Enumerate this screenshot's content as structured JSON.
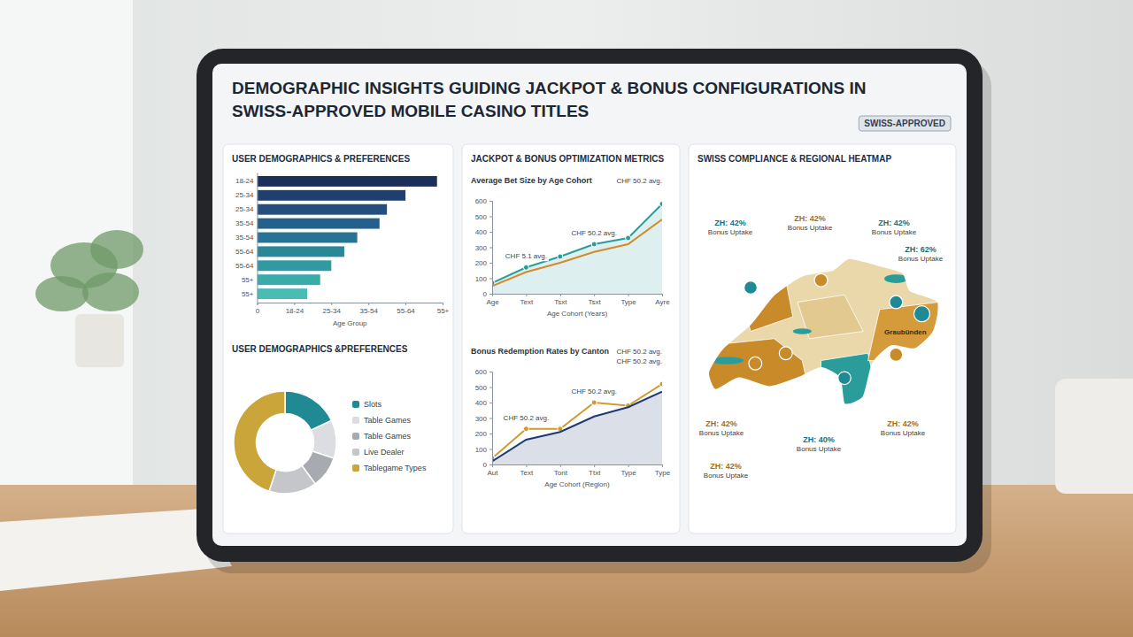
{
  "header": {
    "title": "DEMOGRAPHIC INSIGHTS GUIDING JACKPOT & BONUS CONFIGURATIONS IN SWISS-APPROVED MOBILE CASINO TITLES",
    "badge": "SWISS-APPROVED",
    "panel_title": "JACKPOT & BONUS OPTIMIZATION METRICS"
  },
  "chart_data": [
    {
      "type": "bar",
      "orientation": "horizontal",
      "title": "USER DEMOGRAPHICS & PREFERENCES",
      "categories": [
        "18-24",
        "25-34",
        "25-34",
        "35-54",
        "35-54",
        "55-64",
        "55-64",
        "55+",
        "55+"
      ],
      "values": [
        97,
        80,
        70,
        66,
        54,
        47,
        40,
        34,
        27
      ],
      "colors": [
        "#1b2f5a",
        "#1f3f6e",
        "#234e7e",
        "#24608b",
        "#267395",
        "#2a8798",
        "#2f9aa0",
        "#3aaba8",
        "#4bbcb3"
      ],
      "xlabel": "Age Group",
      "xlim": [
        0,
        100
      ],
      "xticks": [
        0,
        {
          "value": 20,
          "label": "18-24"
        },
        {
          "value": 40,
          "label": "25-34"
        },
        {
          "value": 60,
          "label": "35-54"
        },
        {
          "value": 80,
          "label": "55-64"
        },
        {
          "value": 100,
          "label": "55+"
        }
      ],
      "grid": false
    },
    {
      "type": "pie",
      "title": "USER DEMOGRAPHICS &PREFERENCES",
      "categories": [
        "Slots",
        "Table Games",
        "Table Games",
        "Live Dealer",
        "Tablegame Types"
      ],
      "values": [
        18,
        12,
        10,
        15,
        45
      ],
      "colors": [
        "#1f8a93",
        "#dcdde0",
        "#a7aab0",
        "#c4c6ca",
        "#c9a53a"
      ],
      "legend": "right"
    },
    {
      "type": "line",
      "title": "Average Bet Size by Age Cohort",
      "categories": [
        "Age",
        "Text",
        "Tsxt",
        "Tsxt",
        "Type",
        "Ayre"
      ],
      "series": [
        {
          "type": "area",
          "color": "#2a9d9b",
          "marker": "circle",
          "values": [
            70,
            170,
            240,
            320,
            360,
            580
          ]
        },
        {
          "color": "#d38b2a",
          "values": [
            50,
            140,
            200,
            270,
            320,
            480
          ]
        }
      ],
      "xlabel": "Age Cohort (Years)",
      "ylim": [
        0,
        600
      ],
      "yticks": [
        0,
        100,
        200,
        300,
        400,
        500,
        600
      ],
      "grid": false,
      "annotations": [
        "CHF 50.2 avg.",
        "CHF 5.1 avg.",
        "CHF 50.2 avg."
      ]
    },
    {
      "type": "line",
      "title": "Bonus Redemption Rates by Canton",
      "categories": [
        "Aut",
        "Text",
        "Tont",
        "Ttxt",
        "Type",
        "Type"
      ],
      "series": [
        {
          "color": "#d19a2e",
          "marker": "circle",
          "values": [
            40,
            230,
            230,
            400,
            380,
            520
          ]
        },
        {
          "type": "area",
          "color": "#1f3a6e",
          "values": [
            20,
            160,
            210,
            310,
            370,
            470
          ]
        }
      ],
      "xlabel": "Age Cohort (Region)",
      "ylim": [
        0,
        600
      ],
      "yticks": [
        0,
        100,
        200,
        300,
        400,
        500,
        600
      ],
      "grid": false,
      "annotations": [
        "CHF 50.2 avg.",
        "CHF 50.2 avg.",
        "CHF 50.2 avg.",
        "CHF 50.2 avg."
      ]
    },
    {
      "type": "map",
      "title": "SWISS COMPLIANCE & REGIONAL HEATMAP",
      "values": [
        42,
        42,
        42,
        62,
        42,
        42,
        40,
        42
      ],
      "value_labels": [
        "ZH: 42%",
        "ZH: 42%",
        "ZH: 42%",
        "ZH: 62%",
        "ZH: 42%",
        "ZH: 42%",
        "ZH: 40%",
        "ZH: 42%"
      ],
      "caption": "Bonus Uptake",
      "colors": [
        "#1f8a93",
        "#c98a2a",
        "#1f8a93",
        "#1f8a93",
        "#c98a2a",
        "#c98a2a",
        "#1f8a93",
        "#c98a2a"
      ],
      "annotations": [
        "Graubünden"
      ]
    }
  ]
}
